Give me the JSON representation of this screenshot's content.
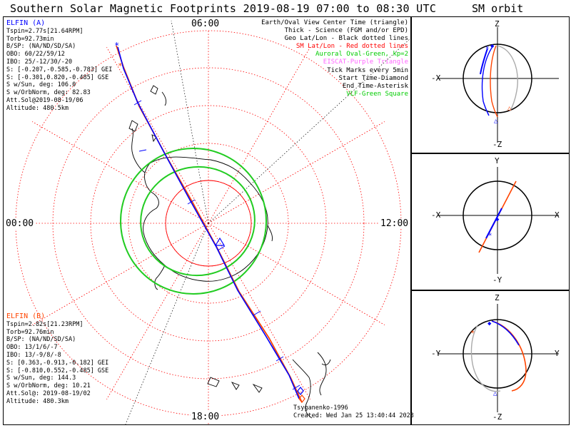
{
  "title": "Southern Solar Magnetic Footprints 2019-08-19 07:00 to 08:30 UTC",
  "orbit_title": "SM orbit",
  "mlt_labels": {
    "top": "06:00",
    "left": "00:00",
    "right": "12:00",
    "bottom": "18:00"
  },
  "legend": [
    {
      "text": "Earth/Oval View Center Time (triangle)",
      "color": "#000000"
    },
    {
      "text": "Thick - Science (FGM and/or EPD)",
      "color": "#000000"
    },
    {
      "text": "Geo Lat/Lon - Black dotted lines",
      "color": "#000000"
    },
    {
      "text": "SM Lat/Lon - Red dotted lines",
      "color": "#ff0000"
    },
    {
      "text": "Auroral Oval-Green, kp=2",
      "color": "#00cc00"
    },
    {
      "text": "EISCAT-Purple Triangle",
      "color": "#ff66ff"
    },
    {
      "text": "Tick Marks every 5min",
      "color": "#000000"
    },
    {
      "text": "Start Time-Diamond",
      "color": "#000000"
    },
    {
      "text": "End Time-Asterisk",
      "color": "#000000"
    },
    {
      "text": "VLF-Green Square",
      "color": "#00cc00"
    }
  ],
  "elfin_a": {
    "name": "ELFIN (A)",
    "color": "#0000ff",
    "lines": [
      "Tspin=2.77s[21.64RPM]",
      "Torb=92.73min",
      "B/SP: (NA/ND/SD/SA)",
      "OBO: 60/22/59/12",
      "IBO: 25/-12/30/-20",
      "S: [-0.207,-0.585,-0.783] GEI",
      "S: [-0.301,0.820,-0.485] GSE",
      "S w/Sun, deg: 106.0",
      "S w/OrbNorm, deg: 82.83",
      "Att.Sol@2019-08-19/06",
      "Altitude: 480.5km"
    ]
  },
  "elfin_b": {
    "name": "ELFIN (B)",
    "color": "#ff4400",
    "lines": [
      "Tspin=2.82s[21.23RPM]",
      "Torb=92.76min",
      "B/SP: (NA/ND/SD/SA)",
      "OBO: 13/1/6/-7",
      "IBO: 13/-9/8/-8",
      "S: [0.363,-0.913,-0.182] GEI",
      "S: [-0.810,0.552,-0.485] GSE",
      "S w/Sun, deg: 144.3",
      "S w/OrbNorm, deg: 10.21",
      "Att.Sol@: 2019-08-19/02",
      "Altitude: 480.3km"
    ]
  },
  "credit": "Tsyganenko-1996",
  "created": "Created: Wed Jan 25 13:40:44 2023",
  "orbit_panels": [
    {
      "top": "Z",
      "bottom": "-Z",
      "left": "-X",
      "right": ""
    },
    {
      "top": "Y",
      "bottom": "-Y",
      "left": "-X",
      "right": "X"
    },
    {
      "top": "Z",
      "bottom": "-Z",
      "left": "-Y",
      "right": "Y"
    }
  ],
  "colors": {
    "elfin_a": "#0000ff",
    "elfin_b": "#ff4400",
    "sm_grid": "#ff0000",
    "oval": "#22cc22",
    "geo_grid": "#000000"
  }
}
